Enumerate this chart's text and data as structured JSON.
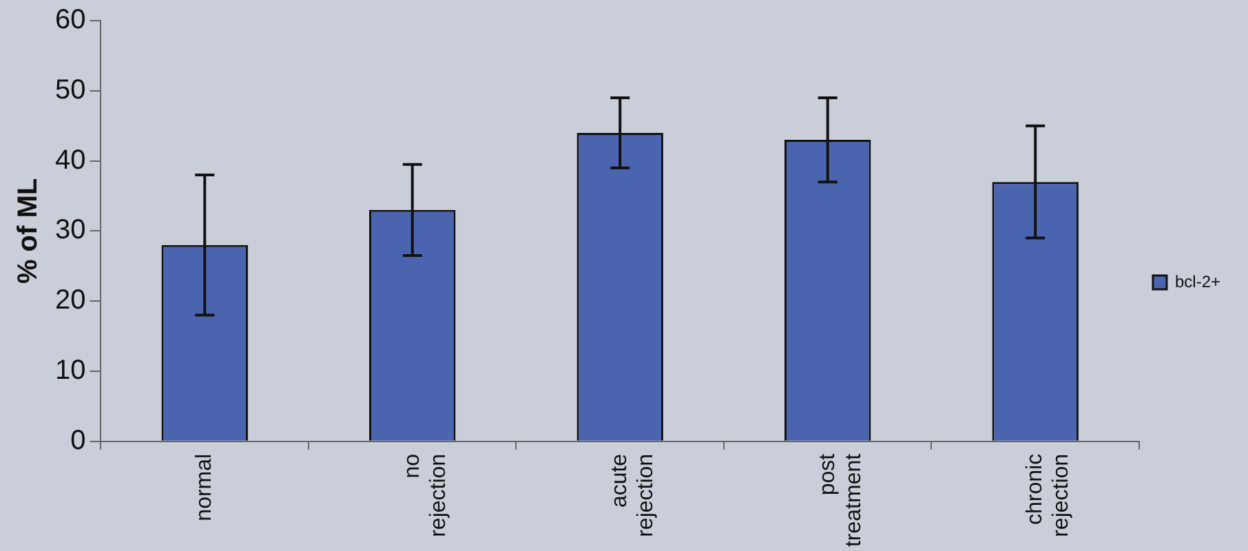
{
  "chart_data": {
    "type": "bar",
    "ylabel": "% of ML",
    "categories": [
      "normal",
      "no rejection",
      "acute rejection",
      "post treatment",
      "chronic rejection"
    ],
    "series": [
      {
        "name": "bcl-2+",
        "color": "#4a64b0",
        "values": [
          28,
          33,
          44,
          43,
          37
        ],
        "errors": [
          10,
          6.5,
          5,
          6,
          8
        ]
      }
    ],
    "ylim": [
      0,
      60
    ],
    "yticks": [
      0,
      10,
      20,
      30,
      40,
      50,
      60
    ],
    "grid": false,
    "legend": "right"
  }
}
